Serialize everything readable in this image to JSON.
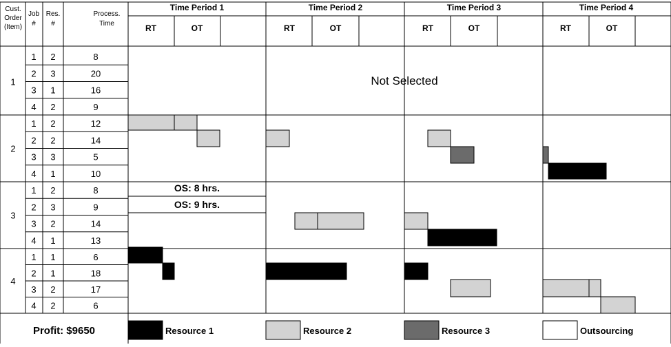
{
  "header": {
    "cust_order": [
      "Cust.",
      "Order",
      "(Item)"
    ],
    "job": [
      "Job",
      "#"
    ],
    "res": [
      "Res.",
      "#"
    ],
    "process": [
      "Process.",
      "Time"
    ],
    "periods": [
      "Time Period 1",
      "Time Period 2",
      "Time Period 3",
      "Time Period 4"
    ],
    "sub_rt": "RT",
    "sub_ot": "OT"
  },
  "orders": [
    {
      "label": "1",
      "jobs": [
        {
          "job": "1",
          "res": "2",
          "time": "8"
        },
        {
          "job": "2",
          "res": "3",
          "time": "20"
        },
        {
          "job": "3",
          "res": "1",
          "time": "16"
        },
        {
          "job": "4",
          "res": "2",
          "time": "9"
        }
      ]
    },
    {
      "label": "2",
      "jobs": [
        {
          "job": "1",
          "res": "2",
          "time": "12"
        },
        {
          "job": "2",
          "res": "2",
          "time": "14"
        },
        {
          "job": "3",
          "res": "3",
          "time": "5"
        },
        {
          "job": "4",
          "res": "1",
          "time": "10"
        }
      ]
    },
    {
      "label": "3",
      "jobs": [
        {
          "job": "1",
          "res": "2",
          "time": "8"
        },
        {
          "job": "2",
          "res": "3",
          "time": "9"
        },
        {
          "job": "3",
          "res": "2",
          "time": "14"
        },
        {
          "job": "4",
          "res": "1",
          "time": "13"
        }
      ]
    },
    {
      "label": "4",
      "jobs": [
        {
          "job": "1",
          "res": "1",
          "time": "6"
        },
        {
          "job": "2",
          "res": "1",
          "time": "18"
        },
        {
          "job": "3",
          "res": "2",
          "time": "17"
        },
        {
          "job": "4",
          "res": "2",
          "time": "6"
        }
      ]
    }
  ],
  "not_selected": "Not Selected",
  "outsourcing_labels": [
    "OS: 8 hrs.",
    "OS: 9 hrs."
  ],
  "profit": "Profit: $9650",
  "legend": [
    {
      "label": "Resource 1",
      "color": "#000000"
    },
    {
      "label": "Resource 2",
      "color": "#d3d3d3"
    },
    {
      "label": "Resource 3",
      "color": "#6b6b6b"
    },
    {
      "label": "Outsourcing",
      "color": "#ffffff"
    }
  ],
  "colors": {
    "resource_1": "#000000",
    "resource_2": "#d3d3d3",
    "resource_3": "#6b6b6b",
    "grid": "#000000"
  }
}
